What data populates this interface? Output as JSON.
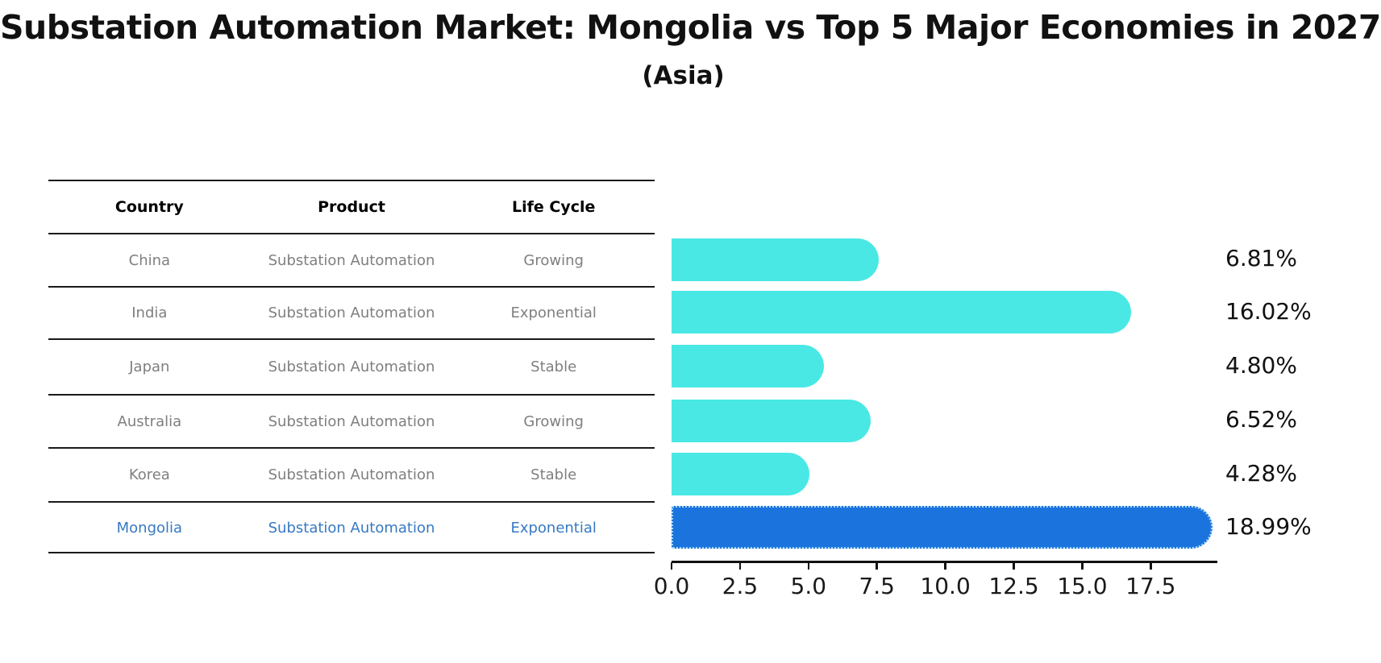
{
  "title": "Substation Automation Market: Mongolia vs Top 5 Major Economies in 2027",
  "subtitle": "(Asia)",
  "table": {
    "headers": [
      "Country",
      "Product",
      "Life Cycle"
    ],
    "rows": [
      {
        "country": "China",
        "product": "Substation Automation",
        "life_cycle": "Growing",
        "highlight": false
      },
      {
        "country": "India",
        "product": "Substation Automation",
        "life_cycle": "Exponential",
        "highlight": false
      },
      {
        "country": "Japan",
        "product": "Substation Automation",
        "life_cycle": "Stable",
        "highlight": false
      },
      {
        "country": "Australia",
        "product": "Substation Automation",
        "life_cycle": "Growing",
        "highlight": false
      },
      {
        "country": "Korea",
        "product": "Substation Automation",
        "life_cycle": "Stable",
        "highlight": false
      },
      {
        "country": "Mongolia",
        "product": "Substation Automation",
        "life_cycle": "Exponential",
        "highlight": true
      }
    ]
  },
  "chart_data": {
    "type": "bar",
    "orientation": "horizontal",
    "title": "Substation Automation Market: Mongolia vs Top 5 Major Economies in 2027 (Asia)",
    "categories": [
      "China",
      "India",
      "Japan",
      "Australia",
      "Korea",
      "Mongolia"
    ],
    "values": [
      6.81,
      16.02,
      4.8,
      6.52,
      4.28,
      18.99
    ],
    "value_labels": [
      "6.81%",
      "16.02%",
      "4.80%",
      "6.52%",
      "4.28%",
      "18.99%"
    ],
    "x_ticks": [
      "0.0",
      "2.5",
      "5.0",
      "7.5",
      "10.0",
      "12.5",
      "15.0",
      "17.5"
    ],
    "x_tick_values": [
      0,
      2.5,
      5,
      7.5,
      10,
      12.5,
      15,
      17.5
    ],
    "xlim": [
      0,
      20
    ],
    "grid": false,
    "legend": "none",
    "bar_color": "#4AE8E4",
    "highlight_color": "#1B74DE",
    "highlight_border_color": "#A8D9F3",
    "highlight_index": 5
  },
  "colors": {
    "background": "#ffffff",
    "table_line": "#1a1a1a",
    "table_text": "#7f7f7f",
    "table_header_text": "#000000",
    "highlight_text": "#3779C2",
    "axis": "#111111"
  }
}
